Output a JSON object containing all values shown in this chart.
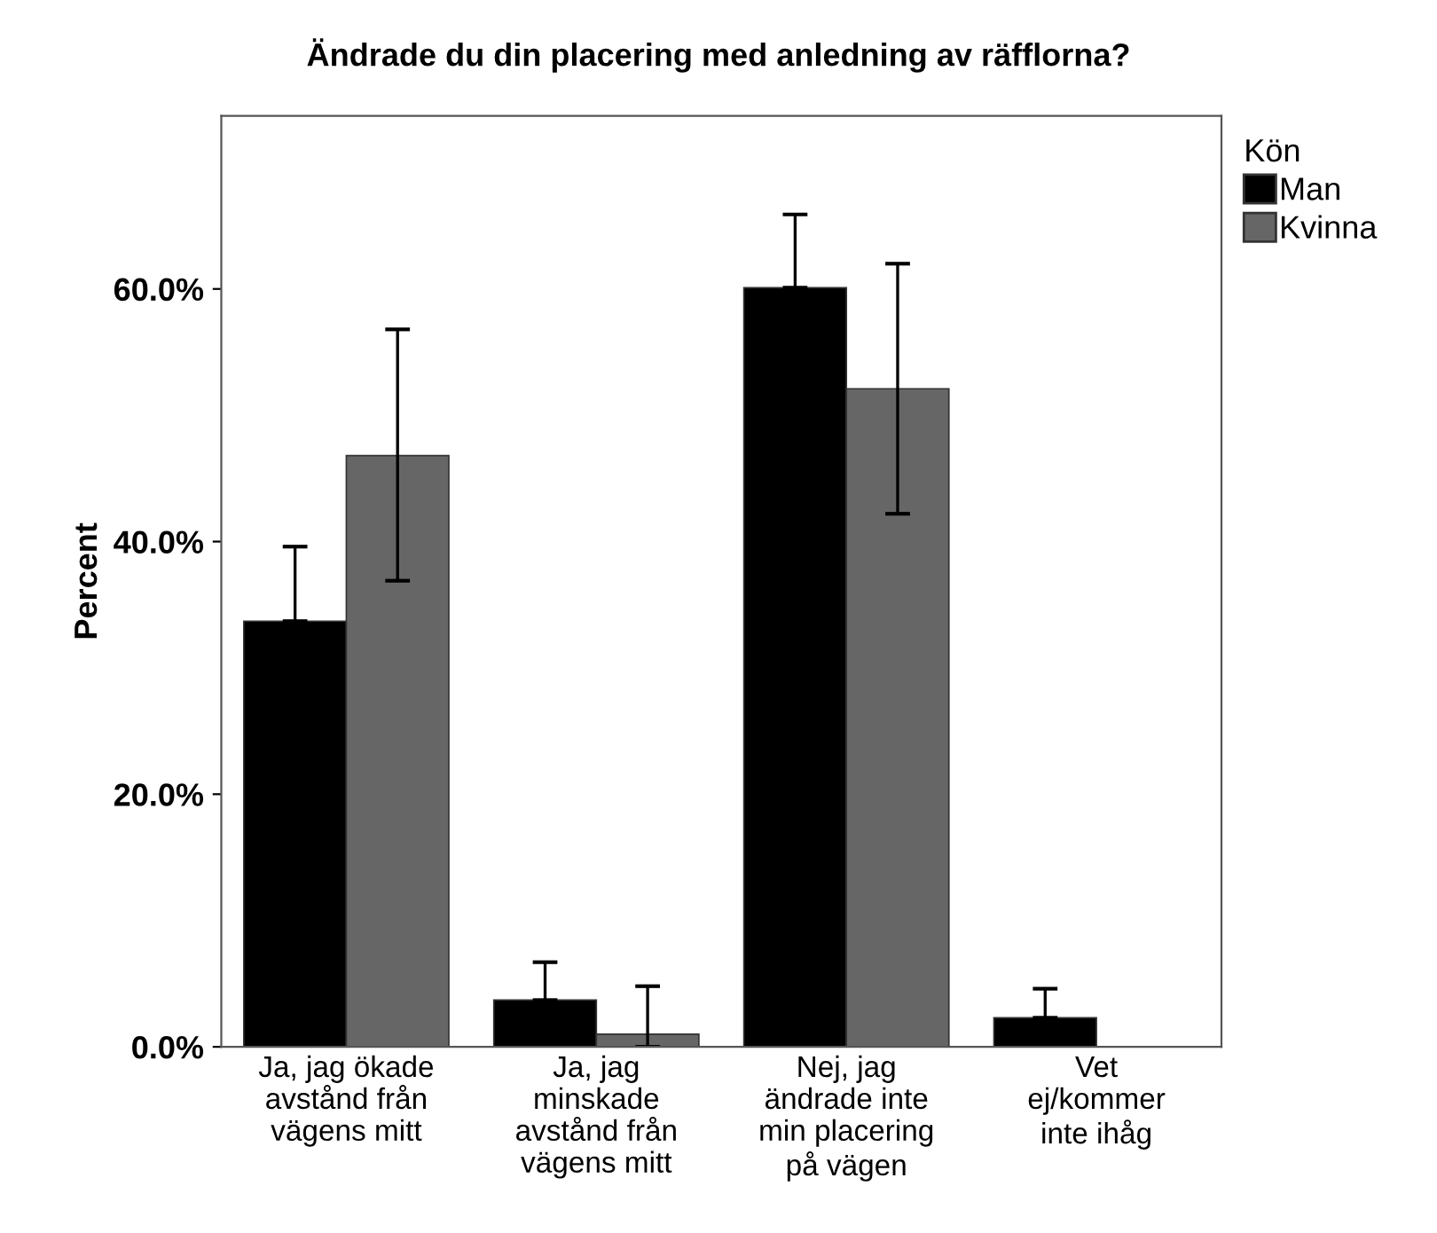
{
  "chart_data": {
    "type": "bar",
    "title": "Ändrade du din placering med anledning av räfflorna?",
    "ylabel": "Percent",
    "legend_title": "Kön",
    "categories": [
      "Ja, jag ökade\navstånd från\nvägens mitt",
      "Ja, jag\nminskade\navstånd från\nvägens mitt",
      "Nej, jag\nändrade inte\nmin placering\npå vägen",
      "Vet\nej/kommer\ninte ihåg"
    ],
    "series": [
      {
        "name": "Man",
        "color": "#000000",
        "values": [
          33.7,
          3.7,
          60.1,
          2.3
        ],
        "errors": [
          [
            33.7,
            39.6
          ],
          [
            3.7,
            6.7
          ],
          [
            60.1,
            65.9
          ],
          [
            2.3,
            4.6
          ]
        ]
      },
      {
        "name": "Kvinna",
        "color": "#666666",
        "values": [
          46.8,
          1.0,
          52.1,
          0.0
        ],
        "errors": [
          [
            36.9,
            56.8
          ],
          [
            0.0,
            4.8
          ],
          [
            42.2,
            62.0
          ],
          null
        ]
      }
    ],
    "ylim": [
      0,
      73.7
    ],
    "yticks": [
      {
        "value": 0,
        "label": "0.0%"
      },
      {
        "value": 20,
        "label": "20.0%"
      },
      {
        "value": 40,
        "label": "40.0%"
      },
      {
        "value": 60,
        "label": "60.0%"
      }
    ],
    "grid": false,
    "legend": "top right"
  }
}
